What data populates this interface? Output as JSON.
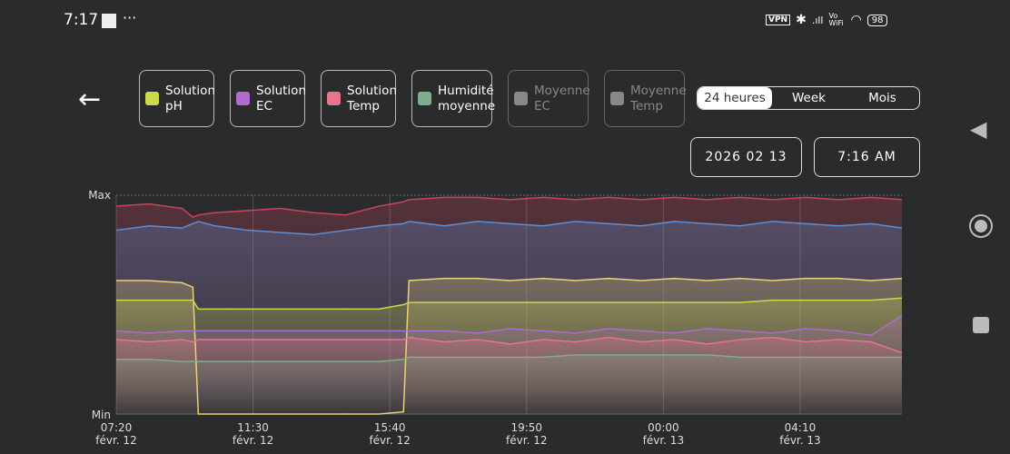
{
  "status_bar": {
    "time": "7:17",
    "vpn": "VPN",
    "volte": "Vo WiFi",
    "battery": "98"
  },
  "legend": [
    {
      "label1": "Solution",
      "label2": "pH",
      "color": "#c9da4a",
      "enabled": true
    },
    {
      "label1": "Solution",
      "label2": "EC",
      "color": "#b06ccc",
      "enabled": true
    },
    {
      "label1": "Solution",
      "label2": "Temp",
      "color": "#e8748e",
      "enabled": true
    },
    {
      "label1": "Humidité",
      "label2": "moyenne",
      "color": "#7fae8c",
      "enabled": true
    },
    {
      "label1": "Moyenne",
      "label2": "EC",
      "color": "#888888",
      "enabled": false
    },
    {
      "label1": "Moyenne",
      "label2": "Temp",
      "color": "#888888",
      "enabled": false
    }
  ],
  "range": {
    "options": [
      "24 heures",
      "Week",
      "Mois"
    ],
    "selected": "24 heures"
  },
  "date": "2026 02 13",
  "time": "7:16 AM",
  "chart_data": {
    "type": "line",
    "y_labels": {
      "max": "Max",
      "min": "Min"
    },
    "ylim": [
      0,
      100
    ],
    "x_ticks": [
      {
        "time": "07:20",
        "date": "févr. 12"
      },
      {
        "time": "11:30",
        "date": "févr. 12"
      },
      {
        "time": "15:40",
        "date": "févr. 12"
      },
      {
        "time": "19:50",
        "date": "févr. 12"
      },
      {
        "time": "00:00",
        "date": "févr. 13"
      },
      {
        "time": "04:10",
        "date": "févr. 13"
      }
    ],
    "x_range": [
      "07:20",
      "07:16"
    ],
    "grid": true,
    "x": [
      "07:20",
      "08:20",
      "09:20",
      "09:40",
      "09:50",
      "10:20",
      "11:20",
      "12:20",
      "13:20",
      "14:20",
      "15:20",
      "16:05",
      "16:15",
      "17:20",
      "18:20",
      "19:20",
      "20:20",
      "21:20",
      "22:20",
      "23:20",
      "00:20",
      "01:20",
      "02:20",
      "03:20",
      "04:20",
      "05:20",
      "06:20",
      "07:16"
    ],
    "series": [
      {
        "color": "#c8455e",
        "values": [
          95,
          96,
          94,
          90,
          91,
          92,
          93,
          94,
          92,
          91,
          95,
          97,
          98,
          99,
          99,
          98,
          99,
          98,
          99,
          98,
          99,
          98,
          99,
          98,
          99,
          98,
          99,
          98
        ]
      },
      {
        "color": "#5c8fd6",
        "values": [
          84,
          86,
          85,
          87,
          88,
          86,
          84,
          83,
          82,
          84,
          86,
          87,
          88,
          86,
          88,
          87,
          86,
          88,
          87,
          86,
          88,
          87,
          86,
          88,
          87,
          86,
          87,
          85
        ]
      },
      {
        "color": "#e8d27a",
        "values": [
          61,
          61,
          60,
          58,
          0,
          0,
          0,
          0,
          0,
          0,
          0,
          1,
          61,
          62,
          62,
          61,
          62,
          61,
          62,
          61,
          62,
          61,
          62,
          61,
          62,
          62,
          61,
          62
        ]
      },
      {
        "color": "#c9da4a",
        "values": [
          52,
          52,
          52,
          52,
          48,
          48,
          48,
          48,
          48,
          48,
          48,
          50,
          51,
          51,
          51,
          51,
          51,
          51,
          51,
          51,
          51,
          51,
          51,
          52,
          52,
          52,
          52,
          53
        ]
      },
      {
        "color": "#b06ccc",
        "values": [
          38,
          37,
          38,
          38,
          38,
          38,
          38,
          38,
          38,
          38,
          38,
          38,
          38,
          38,
          37,
          39,
          38,
          37,
          39,
          38,
          37,
          39,
          38,
          37,
          39,
          38,
          36,
          45
        ]
      },
      {
        "color": "#e8748e",
        "values": [
          34,
          33,
          34,
          33,
          34,
          34,
          34,
          34,
          34,
          34,
          34,
          34,
          35,
          33,
          34,
          32,
          34,
          33,
          35,
          33,
          34,
          32,
          34,
          35,
          33,
          34,
          33,
          28
        ]
      },
      {
        "color": "#7fae8c",
        "values": [
          25,
          25,
          24,
          24,
          24,
          24,
          24,
          24,
          24,
          24,
          24,
          25,
          26,
          26,
          26,
          26,
          26,
          27,
          27,
          27,
          27,
          27,
          26,
          26,
          26,
          26,
          26,
          26
        ]
      }
    ]
  }
}
